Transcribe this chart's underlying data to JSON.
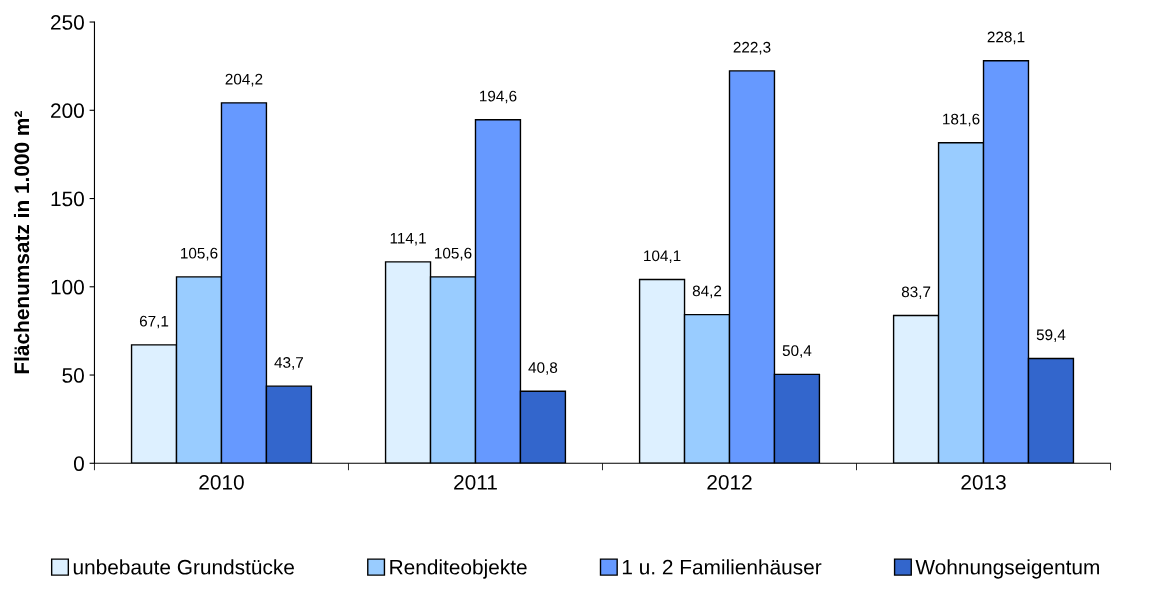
{
  "chart_data": {
    "type": "bar",
    "ylabel": "Flächenumsatz in 1.000 m²",
    "categories": [
      "2010",
      "2011",
      "2012",
      "2013"
    ],
    "ylim": [
      0,
      250
    ],
    "yticks": [
      0,
      50,
      100,
      150,
      200,
      250
    ],
    "legend": "bottom",
    "grid": false,
    "series": [
      {
        "name": "unbebaute Grundstücke",
        "color": "#ddf0ff",
        "values": [
          67.1,
          114.1,
          104.1,
          83.7
        ],
        "value_labels": [
          "67,1",
          "114,1",
          "104,1",
          "83,7"
        ]
      },
      {
        "name": "Renditeobjekte",
        "color": "#99ccff",
        "values": [
          105.6,
          105.6,
          84.2,
          181.6
        ],
        "value_labels": [
          "105,6",
          "105,6",
          "84,2",
          "181,6"
        ]
      },
      {
        "name": "1 u. 2 Familienhäuser",
        "color": "#6699ff",
        "values": [
          204.2,
          194.6,
          222.3,
          228.1
        ],
        "value_labels": [
          "204,2",
          "194,6",
          "222,3",
          "228,1"
        ]
      },
      {
        "name": "Wohnungseigentum",
        "color": "#3366cc",
        "values": [
          43.7,
          40.8,
          50.4,
          59.4
        ],
        "value_labels": [
          "43,7",
          "40,8",
          "50,4",
          "59,4"
        ]
      }
    ]
  }
}
